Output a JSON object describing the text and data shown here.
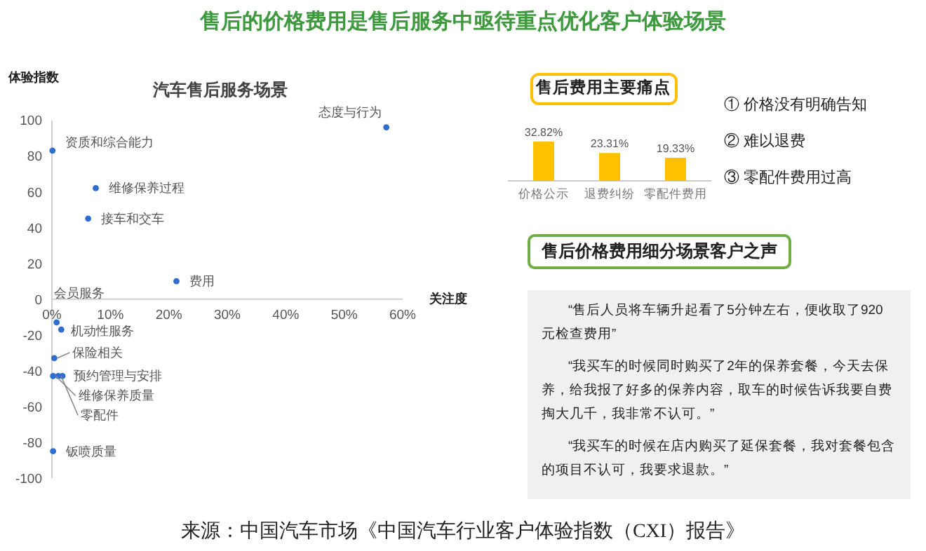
{
  "chart_data": [
    {
      "type": "other",
      "title": "售后的价格费用是售后服务中亟待重点优化客户体验场景",
      "annotations": [
        "来源：中国汽车市场《中国汽车行业客户体验指数（CXI）报告》"
      ]
    },
    {
      "type": "scatter",
      "title": "汽车售后服务场景",
      "xlabel": "关注度",
      "ylabel": "体验指数",
      "color": "#2f6ecf",
      "marker": "circle",
      "x": [
        57.2,
        0.1,
        7.5,
        6.2,
        21.3,
        0.8,
        1.6,
        0.4,
        1.8,
        0.2,
        1.1,
        0.2
      ],
      "values": [
        96,
        83,
        62,
        45,
        10,
        -13,
        -17,
        -33,
        -43,
        -43,
        -43,
        -85
      ],
      "xlim": [
        0,
        60
      ],
      "xticks": [
        {
          "value": 0,
          "label": "0%"
        },
        {
          "value": 10,
          "label": "10%"
        },
        {
          "value": 20,
          "label": "20%"
        },
        {
          "value": 30,
          "label": "30%"
        },
        {
          "value": 40,
          "label": "40%"
        },
        {
          "value": 50,
          "label": "50%"
        },
        {
          "value": 60,
          "label": "60%"
        }
      ],
      "ylim": [
        -100,
        100
      ],
      "yticks": [
        -100,
        -80,
        -60,
        -40,
        -20,
        0,
        20,
        40,
        60,
        80,
        100
      ],
      "annotations": [
        {
          "text": "态度与行为",
          "x": 57.2,
          "y": 96
        },
        {
          "text": "资质和综合能力",
          "x": 0.1,
          "y": 83
        },
        {
          "text": "维修保养过程",
          "x": 7.5,
          "y": 62
        },
        {
          "text": "接车和交车",
          "x": 6.2,
          "y": 45
        },
        {
          "text": "费用",
          "x": 21.3,
          "y": 10
        },
        {
          "text": "会员服务",
          "x": 0.8,
          "y": -13
        },
        {
          "text": "机动性服务",
          "x": 1.6,
          "y": -17
        },
        {
          "text": "保险相关",
          "x": 0.4,
          "y": -33
        },
        {
          "text": "预约管理与安排",
          "x": 1.8,
          "y": -43
        },
        {
          "text": "维修保养质量",
          "x": 0.2,
          "y": -43
        },
        {
          "text": "零配件",
          "x": 1.1,
          "y": -43
        },
        {
          "text": "钣喷质量",
          "x": 0.2,
          "y": -85
        }
      ]
    },
    {
      "type": "bar",
      "title": "售后费用主要痛点",
      "color": "#ffc000",
      "categories": [
        "价格公示",
        "退费纠纷",
        "零配件费用"
      ],
      "values": [
        32.82,
        23.31,
        19.33
      ],
      "value_labels": [
        "32.82%",
        "23.31%",
        "19.33%"
      ],
      "annotations": [
        "①  价格没有明确告知",
        "②  难以退费",
        "③  零配件费用过高"
      ]
    },
    {
      "type": "other",
      "title": "售后价格费用细分场景客户之声",
      "annotations": [
        "“售后人员将车辆升起看了5分钟左右，便收取了920元检查费用”",
        "“我买车的时候同时购买了2年的保养套餐，今天去保养，给我报了好多的保养内容，取车的时候告诉我要自费掏大几千，我非常不认可。”",
        "“我买车的时候在店内购买了延保套餐，我对套餐包含的项目不认可，我要求退款。”"
      ]
    }
  ]
}
